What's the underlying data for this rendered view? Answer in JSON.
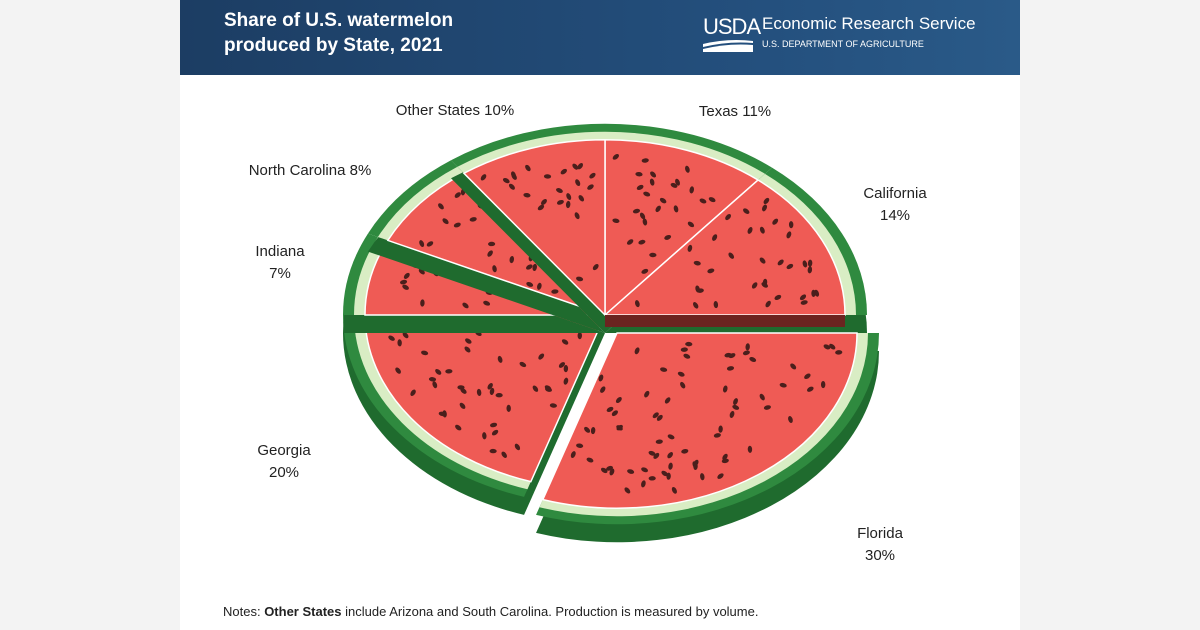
{
  "header": {
    "title": "Share of U.S. watermelon produced by State, 2021",
    "logo_text": "USDA",
    "agency": "Economic Research Service",
    "department": "U.S. DEPARTMENT OF AGRICULTURE"
  },
  "chart_data": {
    "type": "pie",
    "title": "Share of U.S. watermelon produced by State, 2021",
    "unit": "%",
    "slices": [
      {
        "label": "Texas",
        "value": 11,
        "display": "Texas 11%"
      },
      {
        "label": "California",
        "value": 14,
        "display": "California 14%"
      },
      {
        "label": "Florida",
        "value": 30,
        "display": "Florida 30%",
        "exploded": true
      },
      {
        "label": "Georgia",
        "value": 20,
        "display": "Georgia 20%"
      },
      {
        "label": "Indiana",
        "value": 7,
        "display": "Indiana 7%"
      },
      {
        "label": "North Carolina",
        "value": 8,
        "display": "North Carolina 8%"
      },
      {
        "label": "Other States",
        "value": 10,
        "display": "Other States 10%"
      }
    ],
    "start": "top",
    "direction": "clockwise",
    "colors": {
      "flesh": "#ef5b55",
      "rind_light": "#d9edc4",
      "rind_dark": "#2f8a3f",
      "seed": "#4a1f1c",
      "cut_face": "#6b2420"
    }
  },
  "labels": {
    "texas": "Texas 11%",
    "california_name": "California",
    "california_pct": "14%",
    "florida_name": "Florida",
    "florida_pct": "30%",
    "georgia_name": "Georgia",
    "georgia_pct": "20%",
    "indiana_name": "Indiana",
    "indiana_pct": "7%",
    "north_carolina": "North Carolina 8%",
    "other": "Other States 10%"
  },
  "notes": {
    "prefix": "Notes: ",
    "bold": "Other States",
    "rest": " include Arizona and South Carolina. Production is measured by volume."
  }
}
